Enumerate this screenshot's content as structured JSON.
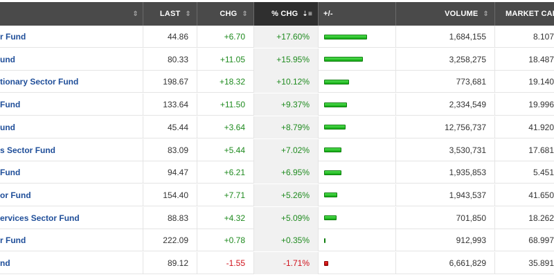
{
  "header": {
    "name_sort": "⇕",
    "last": "LAST",
    "chg": "CHG",
    "pct_chg": "% CHG",
    "pct_sort": "⇣≡",
    "bar": "+/-",
    "volume": "VOLUME",
    "market_cap": "MARKET CAP"
  },
  "rows": [
    {
      "name": "r Fund",
      "last": "44.86",
      "chg": "+6.70",
      "pct": "+17.60%",
      "bar_pct": 17.6,
      "volume": "1,684,155",
      "mcap": "8.107"
    },
    {
      "name": "und",
      "last": "80.33",
      "chg": "+11.05",
      "pct": "+15.95%",
      "bar_pct": 15.95,
      "volume": "3,258,275",
      "mcap": "18.487"
    },
    {
      "name": "tionary Sector Fund",
      "last": "198.67",
      "chg": "+18.32",
      "pct": "+10.12%",
      "bar_pct": 10.12,
      "volume": "773,681",
      "mcap": "19.140"
    },
    {
      "name": "Fund",
      "last": "133.64",
      "chg": "+11.50",
      "pct": "+9.37%",
      "bar_pct": 9.37,
      "volume": "2,334,549",
      "mcap": "19.996"
    },
    {
      "name": "und",
      "last": "45.44",
      "chg": "+3.64",
      "pct": "+8.79%",
      "bar_pct": 8.79,
      "volume": "12,756,737",
      "mcap": "41.920"
    },
    {
      "name": "s Sector Fund",
      "last": "83.09",
      "chg": "+5.44",
      "pct": "+7.02%",
      "bar_pct": 7.02,
      "volume": "3,530,731",
      "mcap": "17.681"
    },
    {
      "name": "Fund",
      "last": "94.47",
      "chg": "+6.21",
      "pct": "+6.95%",
      "bar_pct": 6.95,
      "volume": "1,935,853",
      "mcap": "5.451"
    },
    {
      "name": "or Fund",
      "last": "154.40",
      "chg": "+7.71",
      "pct": "+5.26%",
      "bar_pct": 5.26,
      "volume": "1,943,537",
      "mcap": "41.650"
    },
    {
      "name": "ervices Sector Fund",
      "last": "88.83",
      "chg": "+4.32",
      "pct": "+5.09%",
      "bar_pct": 5.09,
      "volume": "701,850",
      "mcap": "18.262"
    },
    {
      "name": "r Fund",
      "last": "222.09",
      "chg": "+0.78",
      "pct": "+0.35%",
      "bar_pct": 0.35,
      "volume": "912,993",
      "mcap": "68.997"
    },
    {
      "name": "nd",
      "last": "89.12",
      "chg": "-1.55",
      "pct": "-1.71%",
      "bar_pct": -1.71,
      "volume": "6,661,829",
      "mcap": "35.891"
    }
  ]
}
